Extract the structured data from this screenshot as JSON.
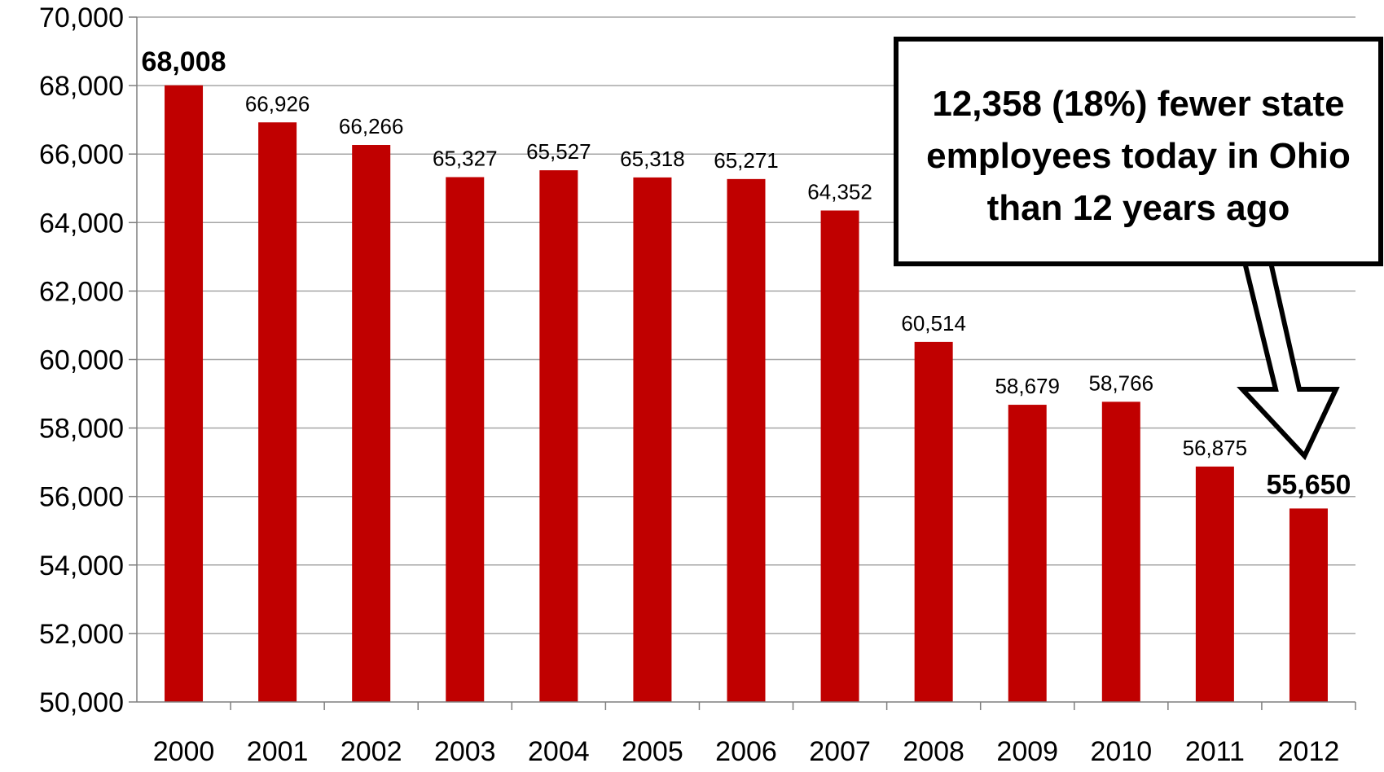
{
  "chart_data": {
    "type": "bar",
    "categories": [
      "2000",
      "2001",
      "2002",
      "2003",
      "2004",
      "2005",
      "2006",
      "2007",
      "2008",
      "2009",
      "2010",
      "2011",
      "2012"
    ],
    "values": [
      68008,
      66926,
      66266,
      65327,
      65527,
      65318,
      65271,
      64352,
      60514,
      58679,
      58766,
      56875,
      55650
    ],
    "data_labels": [
      "68,008",
      "66,926",
      "66,266",
      "65,327",
      "65,527",
      "65,318",
      "65,271",
      "64,352",
      "60,514",
      "58,679",
      "58,766",
      "56,875",
      "55,650"
    ],
    "bold_labels": [
      0,
      12
    ],
    "ylim": [
      50000,
      70000
    ],
    "yticks": [
      50000,
      52000,
      54000,
      56000,
      58000,
      60000,
      62000,
      64000,
      66000,
      68000,
      70000
    ],
    "ytick_labels": [
      "50,000",
      "52,000",
      "54,000",
      "56,000",
      "58,000",
      "60,000",
      "62,000",
      "64,000",
      "66,000",
      "68,000",
      "70,000"
    ],
    "grid": true,
    "bar_color": "#C00000",
    "annotation": {
      "lines": [
        "12,358 (18%) fewer state",
        "employees today in Ohio",
        "than 12 years ago"
      ],
      "target_category": "2012"
    }
  }
}
